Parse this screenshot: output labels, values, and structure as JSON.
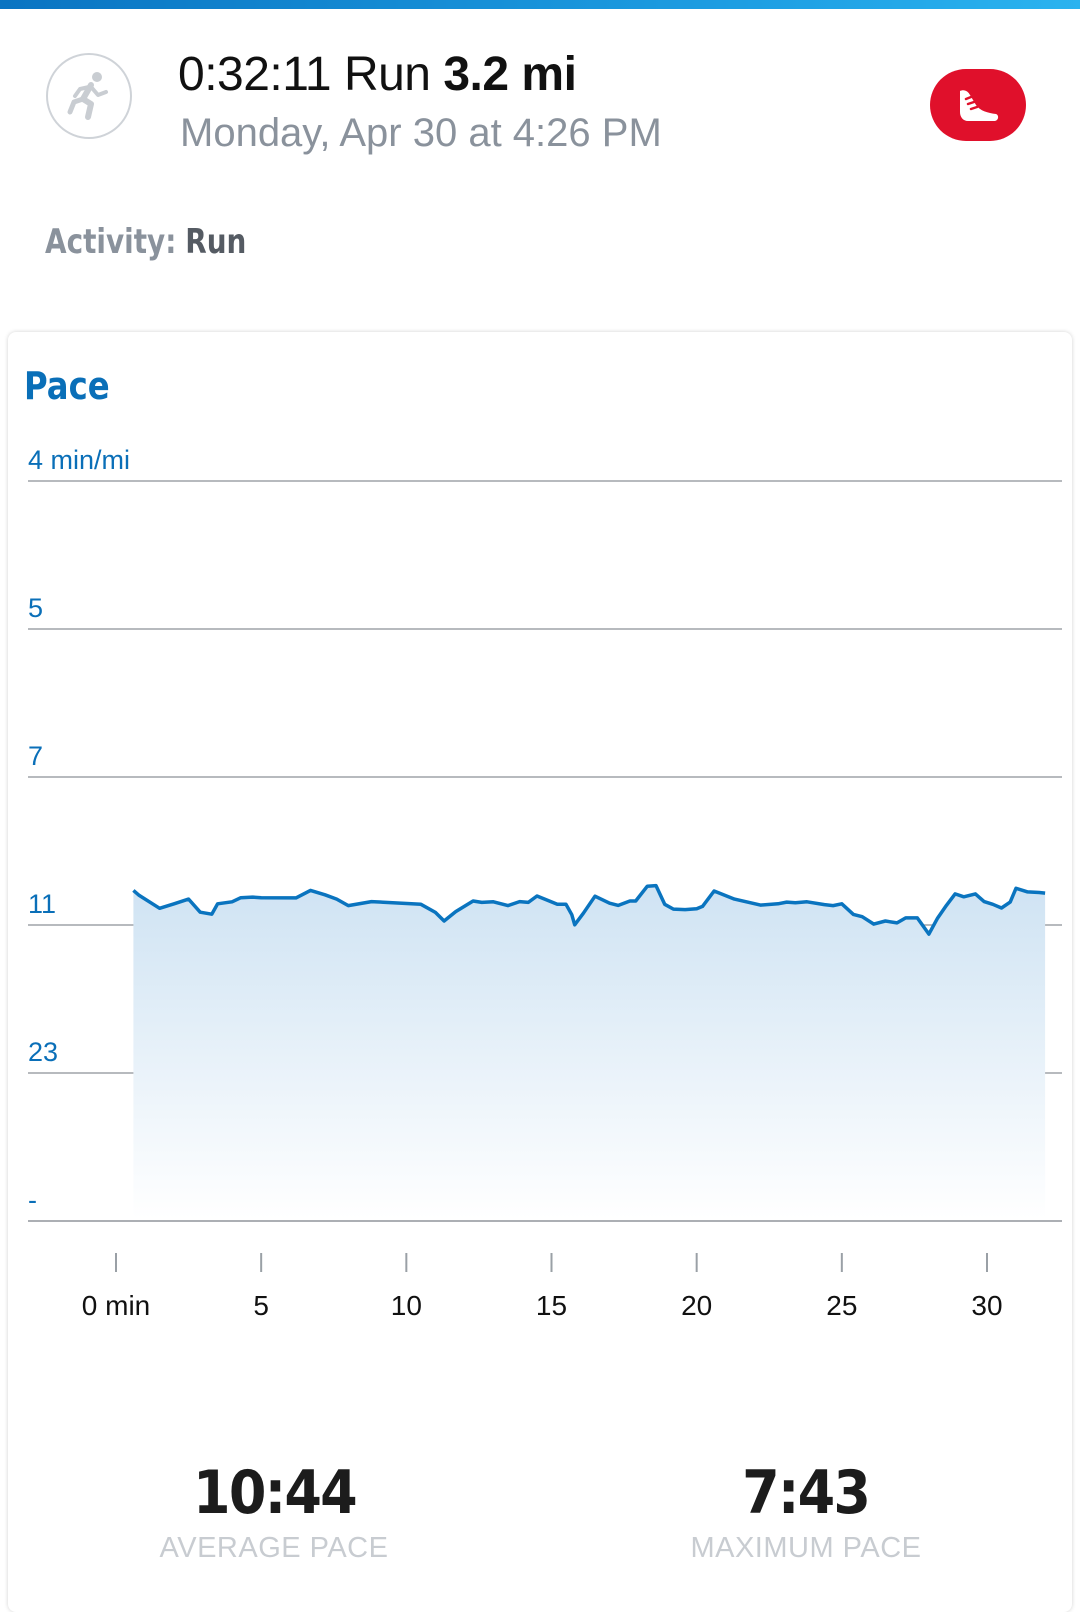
{
  "workout": {
    "duration": "0:32:11",
    "type": "Run",
    "distance": "3.2 mi",
    "date_line": "Monday, Apr 30 at 4:26 PM",
    "activity_label": "Activity:",
    "activity_value": "Run",
    "icon": "running-person-icon",
    "shoe_button_icon": "shoe-icon",
    "brand_color": "#e0102b"
  },
  "pace_card": {
    "title": "Pace",
    "accent_color": "#0a6fb8"
  },
  "stats": {
    "average_value": "10:44",
    "average_label": "AVERAGE PACE",
    "max_value": "7:43",
    "max_label": "MAXIMUM PACE"
  },
  "chart_data": {
    "type": "area",
    "title": "Pace",
    "xlabel": "",
    "ylabel": "",
    "y_tick_labels": [
      "4 min/mi",
      "5",
      "7",
      "11",
      "23",
      "-"
    ],
    "y_scale": "reciprocal",
    "x_ticks": [
      0,
      5,
      10,
      15,
      20,
      25,
      30
    ],
    "x_tick_labels": [
      "0 min",
      "5",
      "10",
      "15",
      "20",
      "25",
      "30"
    ],
    "xlim": [
      0,
      32.2
    ],
    "grid": true,
    "line_color": "#0a74bf",
    "fill_color": "#d6e8f5",
    "series": [
      {
        "x": [
          0.6,
          0.8,
          1.5,
          2.0,
          2.5,
          2.9,
          3.3,
          3.5,
          4.0,
          4.3,
          4.7,
          5.0,
          6.2,
          6.7,
          7.2,
          7.6,
          8.0,
          8.8,
          10.5,
          11.0,
          11.3,
          11.7,
          12.3,
          12.6,
          13.0,
          13.5,
          13.9,
          14.2,
          14.5,
          15.2,
          15.5,
          15.7,
          15.8,
          16.1,
          16.5,
          17.0,
          17.3,
          17.7,
          17.9,
          18.3,
          18.6,
          18.9,
          19.2,
          19.6,
          20.0,
          20.2,
          20.6,
          21.3,
          22.2,
          22.8,
          23.1,
          23.4,
          23.8,
          24.4,
          24.7,
          25.0,
          25.4,
          25.7,
          26.1,
          26.5,
          26.9,
          27.2,
          27.6,
          28.0,
          28.3,
          28.6,
          28.9,
          29.2,
          29.6,
          29.9,
          30.2,
          30.5,
          30.8,
          31.0,
          31.4,
          31.8,
          32.0
        ],
        "y": [
          9.68,
          9.85,
          10.32,
          10.15,
          9.98,
          10.47,
          10.55,
          10.15,
          10.08,
          9.93,
          9.91,
          9.93,
          9.94,
          9.68,
          9.83,
          9.98,
          10.22,
          10.07,
          10.17,
          10.48,
          10.83,
          10.45,
          10.05,
          10.1,
          10.08,
          10.22,
          10.07,
          10.1,
          9.87,
          10.17,
          10.17,
          10.57,
          10.99,
          10.51,
          9.88,
          10.13,
          10.21,
          10.05,
          10.05,
          9.54,
          9.52,
          10.17,
          10.35,
          10.37,
          10.34,
          10.25,
          9.7,
          9.98,
          10.2,
          10.15,
          10.09,
          10.11,
          10.08,
          10.18,
          10.22,
          10.15,
          10.56,
          10.65,
          10.96,
          10.83,
          10.91,
          10.7,
          10.7,
          11.41,
          10.71,
          10.21,
          9.8,
          9.9,
          9.8,
          10.07,
          10.17,
          10.31,
          10.09,
          9.61,
          9.73,
          9.75,
          9.77
        ],
        "y_unit": "min/mi"
      }
    ]
  }
}
